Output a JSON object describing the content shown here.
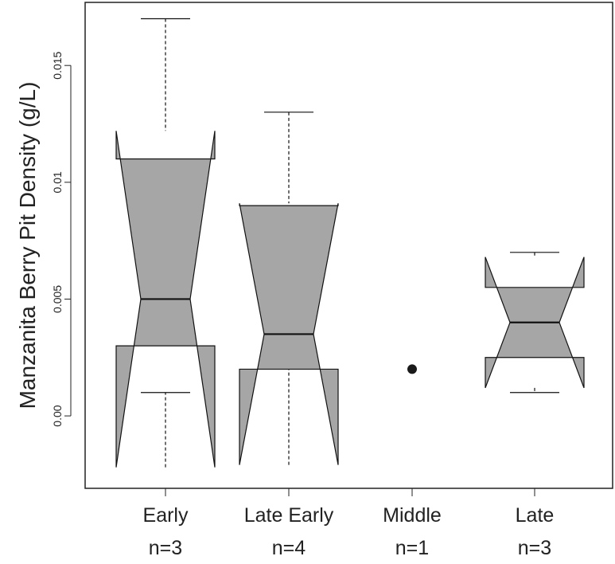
{
  "chart_data": {
    "type": "boxplot",
    "notched": true,
    "ylabel": "Manzanita Berry Pit Density (g/L)",
    "ylim": [
      -0.0031,
      0.0177
    ],
    "yticks": [
      {
        "value": 0.0,
        "label": "0.00"
      },
      {
        "value": 0.005,
        "label": "0.005"
      },
      {
        "value": 0.01,
        "label": "0.01"
      },
      {
        "value": 0.015,
        "label": "0.015"
      }
    ],
    "categories": [
      {
        "label": "Early",
        "n_label": "n=3",
        "kind": "box",
        "whisker_low": 0.001,
        "q1": 0.003,
        "median": 0.005,
        "q3": 0.011,
        "whisker_high": 0.017,
        "notch_low": -0.0022,
        "notch_high": 0.0122
      },
      {
        "label": "Late Early",
        "n_label": "n=4",
        "kind": "box",
        "whisker_low": 0.002,
        "q1": 0.002,
        "median": 0.0035,
        "q3": 0.009,
        "whisker_high": 0.013,
        "notch_low": -0.0021,
        "notch_high": 0.0091
      },
      {
        "label": "Middle",
        "n_label": "n=1",
        "kind": "point",
        "value": 0.002
      },
      {
        "label": "Late",
        "n_label": "n=3",
        "kind": "box",
        "whisker_low": 0.001,
        "q1": 0.0025,
        "median": 0.004,
        "q3": 0.0055,
        "whisker_high": 0.007,
        "notch_low": 0.0012,
        "notch_high": 0.0068
      }
    ],
    "grid": false,
    "legend": "none"
  },
  "colors": {
    "box_fill": "#a6a6a6",
    "stroke": "#111111",
    "point": "#1a1a1a"
  }
}
